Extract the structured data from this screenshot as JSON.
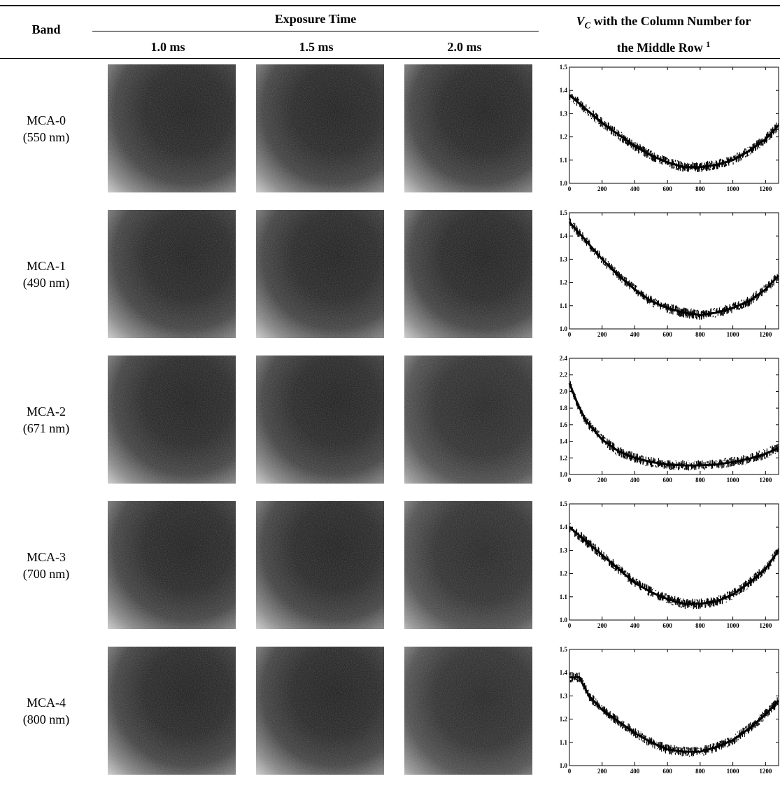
{
  "header": {
    "band": "Band",
    "exposure_time": "Exposure Time",
    "vc_prefix": "V",
    "vc_subscript": "C",
    "vc_title_line1": " with the Column Number for",
    "vc_title_line2": "the Middle Row",
    "vc_footnote_mark": "1",
    "exposures": [
      "1.0 ms",
      "1.5 ms",
      "2.0 ms"
    ]
  },
  "rows": [
    {
      "band": "MCA-0",
      "wavelength": "(550 nm)",
      "y_ticks": [
        "1.5",
        "1.4",
        "1.3",
        "1.2",
        "1.1",
        "1.0"
      ]
    },
    {
      "band": "MCA-1",
      "wavelength": "(490 nm)",
      "y_ticks": [
        "1.5",
        "1.4",
        "1.3",
        "1.2",
        "1.1",
        "1.0"
      ]
    },
    {
      "band": "MCA-2",
      "wavelength": "(671 nm)",
      "y_ticks": [
        "2.4",
        "2.2",
        "2.0",
        "1.8",
        "1.6",
        "1.4",
        "1.2",
        "1.0"
      ]
    },
    {
      "band": "MCA-3",
      "wavelength": "(700 nm)",
      "y_ticks": [
        "1.5",
        "1.4",
        "1.3",
        "1.2",
        "1.1",
        "1.0"
      ]
    },
    {
      "band": "MCA-4",
      "wavelength": "(800 nm)",
      "y_ticks": [
        "1.5",
        "1.4",
        "1.3",
        "1.2",
        "1.1",
        "1.0"
      ]
    }
  ],
  "chart_data": [
    {
      "type": "line",
      "ylim": [
        1.0,
        1.5
      ],
      "xlim": [
        0,
        1280
      ],
      "x_ticks": [
        "0",
        "200",
        "400",
        "600",
        "800",
        "1000",
        "1200"
      ],
      "series": [
        {
          "x": [
            0,
            100,
            200,
            300,
            400,
            500,
            600,
            700,
            800,
            900,
            1000,
            1100,
            1200,
            1280
          ],
          "y": [
            1.38,
            1.32,
            1.26,
            1.21,
            1.16,
            1.12,
            1.09,
            1.07,
            1.07,
            1.08,
            1.1,
            1.14,
            1.19,
            1.25
          ]
        }
      ]
    },
    {
      "type": "line",
      "ylim": [
        1.0,
        1.5
      ],
      "xlim": [
        0,
        1280
      ],
      "x_ticks": [
        "0",
        "200",
        "400",
        "600",
        "800",
        "1000",
        "1200"
      ],
      "series": [
        {
          "x": [
            0,
            100,
            200,
            300,
            400,
            500,
            600,
            700,
            800,
            900,
            1000,
            1100,
            1200,
            1280
          ],
          "y": [
            1.46,
            1.38,
            1.3,
            1.23,
            1.17,
            1.12,
            1.09,
            1.07,
            1.06,
            1.07,
            1.09,
            1.12,
            1.17,
            1.23
          ]
        }
      ]
    },
    {
      "type": "line",
      "ylim": [
        1.0,
        2.4
      ],
      "xlim": [
        0,
        1280
      ],
      "x_ticks": [
        "0",
        "200",
        "400",
        "600",
        "800",
        "1000",
        "1200"
      ],
      "series": [
        {
          "x": [
            0,
            50,
            100,
            200,
            300,
            400,
            500,
            600,
            700,
            800,
            900,
            1000,
            1100,
            1200,
            1280
          ],
          "y": [
            2.1,
            1.85,
            1.65,
            1.42,
            1.28,
            1.2,
            1.15,
            1.12,
            1.11,
            1.11,
            1.12,
            1.15,
            1.19,
            1.25,
            1.32
          ]
        }
      ]
    },
    {
      "type": "line",
      "ylim": [
        1.0,
        1.5
      ],
      "xlim": [
        0,
        1280
      ],
      "x_ticks": [
        "0",
        "200",
        "400",
        "600",
        "800",
        "1000",
        "1200"
      ],
      "series": [
        {
          "x": [
            0,
            100,
            200,
            300,
            400,
            500,
            600,
            700,
            800,
            900,
            1000,
            1100,
            1200,
            1280
          ],
          "y": [
            1.4,
            1.34,
            1.28,
            1.22,
            1.16,
            1.12,
            1.09,
            1.07,
            1.07,
            1.08,
            1.11,
            1.16,
            1.22,
            1.3
          ]
        }
      ]
    },
    {
      "type": "line",
      "ylim": [
        1.0,
        1.5
      ],
      "xlim": [
        0,
        1280
      ],
      "x_ticks": [
        "0",
        "200",
        "400",
        "600",
        "800",
        "1000",
        "1200"
      ],
      "series": [
        {
          "x": [
            0,
            60,
            120,
            200,
            300,
            400,
            500,
            600,
            700,
            800,
            900,
            1000,
            1100,
            1200,
            1280
          ],
          "y": [
            1.38,
            1.38,
            1.3,
            1.24,
            1.19,
            1.14,
            1.1,
            1.07,
            1.06,
            1.06,
            1.08,
            1.11,
            1.16,
            1.22,
            1.28
          ]
        }
      ]
    }
  ]
}
